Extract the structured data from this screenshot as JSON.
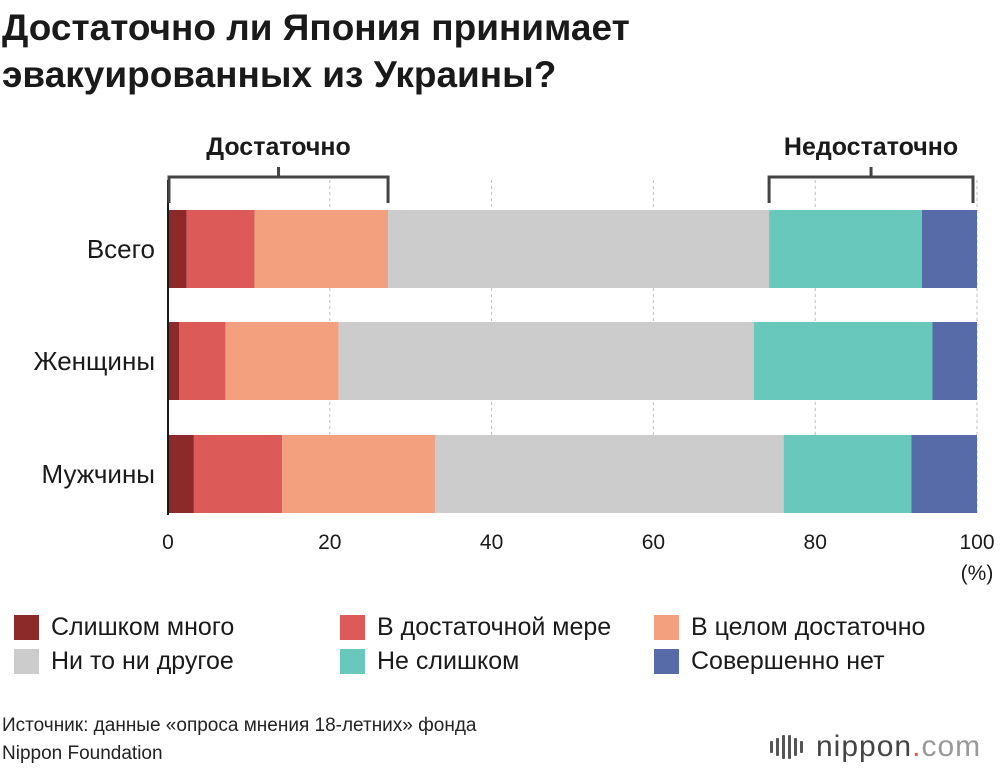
{
  "title": {
    "line1": "Достаточно ли Япония принимает",
    "line2": "эвакуированных из Украины?"
  },
  "brackets": {
    "left_label": "Достаточно",
    "right_label": "Недостаточно"
  },
  "chart_data": {
    "type": "bar",
    "orientation": "horizontal",
    "stacked": true,
    "title": "Достаточно ли Япония принимает эвакуированных из Украины?",
    "xlabel": "(%)",
    "xlim": [
      0,
      100
    ],
    "xticks": [
      0,
      20,
      40,
      60,
      80,
      100
    ],
    "categories": [
      "Всего",
      "Женщины",
      "Мужчины"
    ],
    "series": [
      {
        "name": "Слишком много",
        "color": "#8c2a2a",
        "values": [
          2.3,
          1.4,
          3.2
        ]
      },
      {
        "name": "В достаточной мере",
        "color": "#dc5a57",
        "values": [
          8.4,
          5.7,
          10.9
        ]
      },
      {
        "name": "В целом достаточно",
        "color": "#f2a07e",
        "values": [
          16.5,
          14.0,
          18.9
        ]
      },
      {
        "name": "Ни то ни другое",
        "color": "#cccccc",
        "values": [
          47.1,
          51.3,
          43.1
        ]
      },
      {
        "name": "Не слишком",
        "color": "#68c8bc",
        "values": [
          18.9,
          22.1,
          15.8
        ]
      },
      {
        "name": "Совершенно нет",
        "color": "#576ba8",
        "values": [
          6.8,
          5.5,
          8.1
        ]
      }
    ],
    "legend_position": "bottom"
  },
  "source": {
    "line1": "Источник: данные «опроса мнения 18-летних» фонда",
    "line2": "Nippon Foundation"
  },
  "brand": {
    "name": "nippon",
    "dot": ".",
    "tld": "com"
  }
}
